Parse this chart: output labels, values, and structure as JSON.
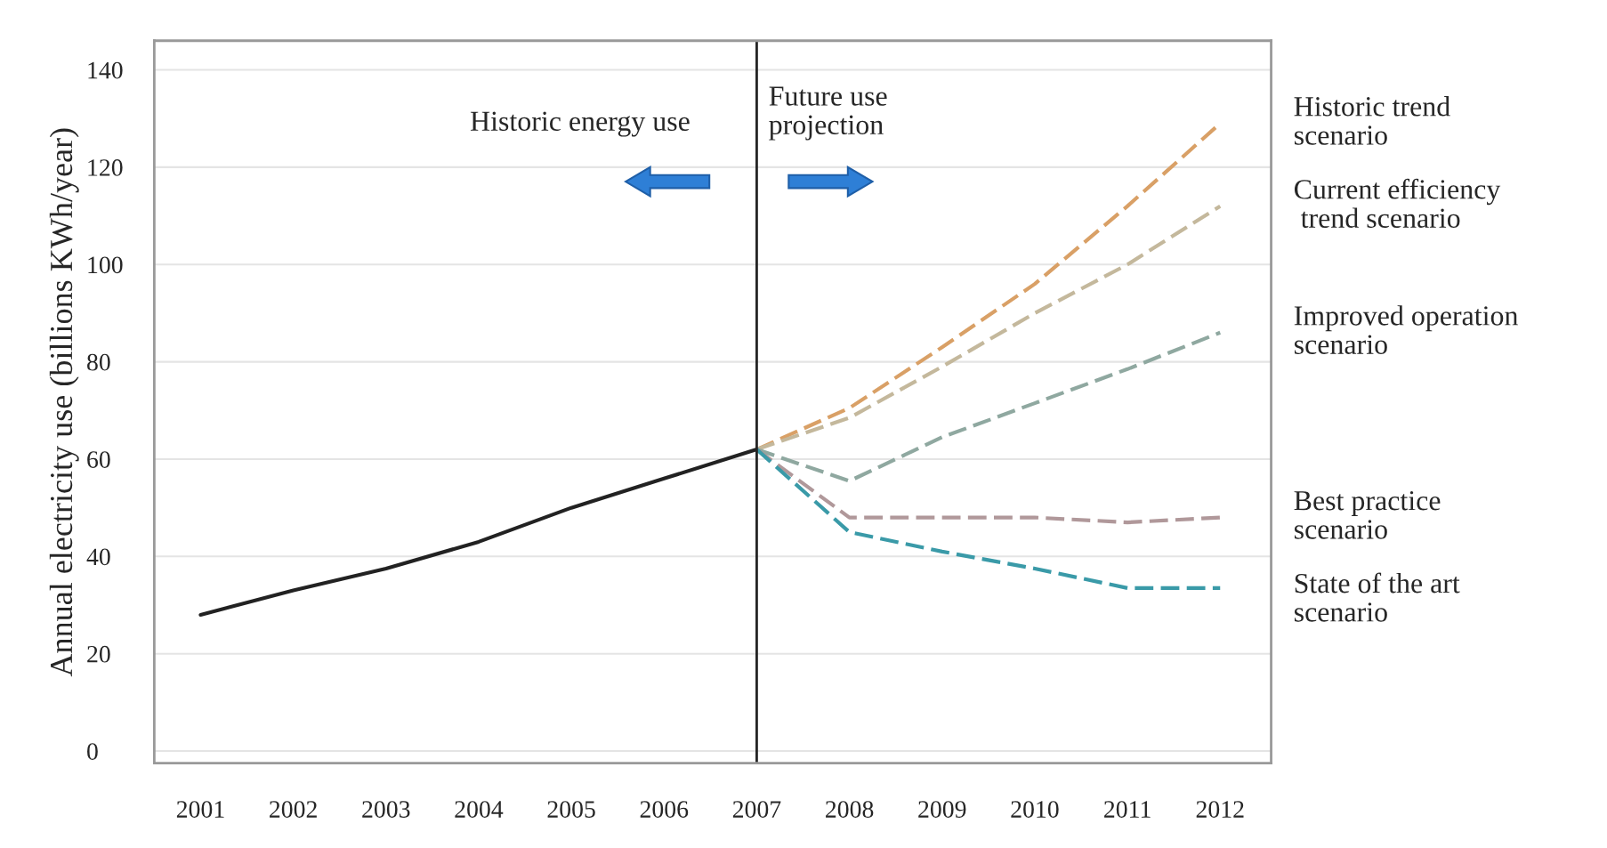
{
  "chart_data": {
    "type": "line",
    "ylabel": "Annual electricity use (billions KWh/year)",
    "xlim": [
      2000.5,
      2012.55
    ],
    "xticks": [
      2001,
      2002,
      2003,
      2004,
      2005,
      2006,
      2007,
      2008,
      2009,
      2010,
      2011,
      2012
    ],
    "ylim": [
      -2.5,
      146
    ],
    "yticks": [
      0,
      20,
      40,
      60,
      80,
      100,
      120,
      140
    ],
    "grid": "y",
    "legend": false,
    "ref_lines": [
      {
        "axis": "x",
        "value": 2007,
        "color": "#222222"
      }
    ],
    "annotations": [
      "Historic energy use",
      "Future use\nprojection"
    ],
    "series": [
      {
        "color": "#222222",
        "line_style": "solid",
        "x": [
          2001,
          2002,
          2003,
          2004,
          2005,
          2006,
          2007
        ],
        "values": [
          28,
          33,
          37.5,
          43,
          50,
          56,
          62
        ]
      },
      {
        "name": "Historic trend\nscenario",
        "color": "#d9a066",
        "line_style": "dashed",
        "x": [
          2007,
          2008,
          2009,
          2010,
          2011,
          2012
        ],
        "values": [
          62,
          70.5,
          83,
          96,
          112,
          129
        ]
      },
      {
        "name": "Current efficiency\n trend scenario",
        "color": "#c4b89c",
        "line_style": "dashed",
        "x": [
          2007,
          2008,
          2009,
          2010,
          2011,
          2012
        ],
        "values": [
          62,
          68.5,
          79,
          90,
          100,
          112
        ]
      },
      {
        "name": "Improved operation\nscenario",
        "color": "#8fa8a0",
        "line_style": "dashed",
        "x": [
          2007,
          2008,
          2009,
          2010,
          2011,
          2012
        ],
        "values": [
          62,
          55.5,
          64.5,
          71.5,
          78.5,
          86
        ]
      },
      {
        "name": "Best practice\nscenario",
        "color": "#b0989a",
        "line_style": "dashed",
        "x": [
          2007,
          2008,
          2009,
          2010,
          2011,
          2012
        ],
        "values": [
          62,
          48,
          48,
          48,
          47,
          48
        ]
      },
      {
        "name": "State of the art\nscenario",
        "color": "#3a9aa8",
        "line_style": "dashed",
        "x": [
          2007,
          2008,
          2009,
          2010,
          2011,
          2012
        ],
        "values": [
          62,
          45,
          41,
          37.5,
          33.5,
          33.5
        ]
      }
    ]
  }
}
